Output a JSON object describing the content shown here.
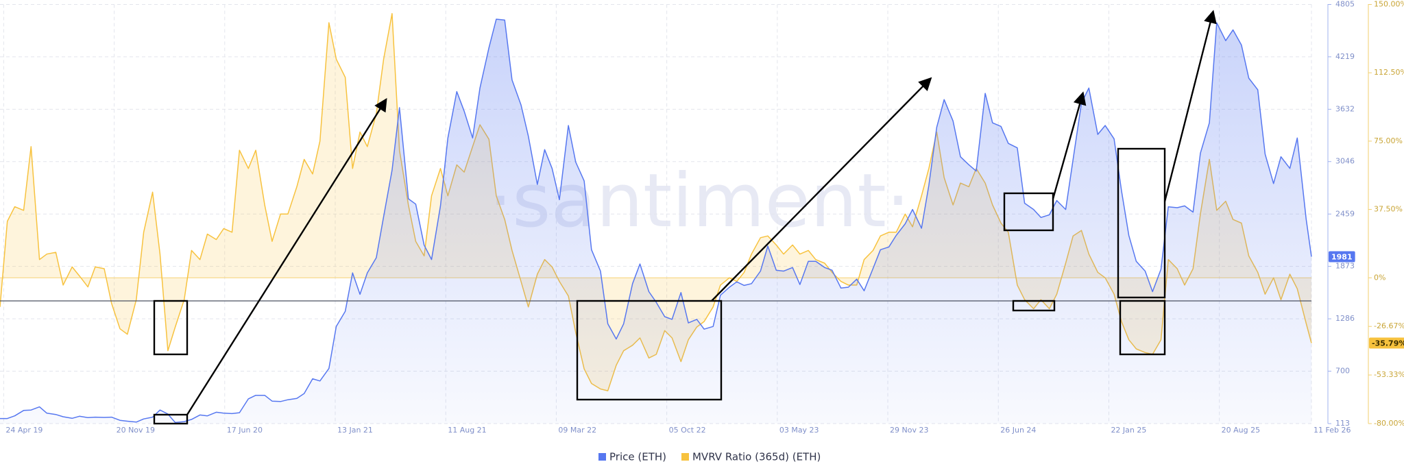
{
  "chart_data": {
    "type": "line",
    "watermark": "·santiment·",
    "grid": true,
    "x": [
      "2019-04-17",
      "2019-05-01",
      "2019-05-15",
      "2019-06-01",
      "2019-06-15",
      "2019-07-01",
      "2019-07-15",
      "2019-08-01",
      "2019-08-15",
      "2019-09-01",
      "2019-09-15",
      "2019-10-01",
      "2019-10-15",
      "2019-11-01",
      "2019-11-15",
      "2019-12-01",
      "2019-12-15",
      "2020-01-01",
      "2020-01-15",
      "2020-02-01",
      "2020-02-15",
      "2020-03-01",
      "2020-03-15",
      "2020-04-01",
      "2020-04-15",
      "2020-05-01",
      "2020-05-15",
      "2020-06-01",
      "2020-06-15",
      "2020-07-01",
      "2020-07-15",
      "2020-08-01",
      "2020-08-15",
      "2020-09-01",
      "2020-09-15",
      "2020-10-01",
      "2020-10-15",
      "2020-11-01",
      "2020-11-15",
      "2020-12-01",
      "2020-12-15",
      "2021-01-01",
      "2021-01-15",
      "2021-02-01",
      "2021-02-15",
      "2021-03-01",
      "2021-03-15",
      "2021-04-01",
      "2021-04-15",
      "2021-05-01",
      "2021-05-15",
      "2021-06-01",
      "2021-06-15",
      "2021-07-01",
      "2021-07-15",
      "2021-08-01",
      "2021-08-15",
      "2021-09-01",
      "2021-09-15",
      "2021-10-01",
      "2021-10-15",
      "2021-11-01",
      "2021-11-15",
      "2021-12-01",
      "2021-12-15",
      "2022-01-01",
      "2022-01-15",
      "2022-02-01",
      "2022-02-15",
      "2022-03-01",
      "2022-03-15",
      "2022-04-01",
      "2022-04-15",
      "2022-05-01",
      "2022-05-15",
      "2022-06-01",
      "2022-06-15",
      "2022-07-01",
      "2022-07-15",
      "2022-08-01",
      "2022-08-15",
      "2022-09-01",
      "2022-09-15",
      "2022-10-01",
      "2022-10-15",
      "2022-11-01",
      "2022-11-15",
      "2022-12-01",
      "2022-12-15",
      "2023-01-01",
      "2023-01-15",
      "2023-02-01",
      "2023-02-15",
      "2023-03-01",
      "2023-03-15",
      "2023-04-01",
      "2023-04-15",
      "2023-05-01",
      "2023-05-15",
      "2023-06-01",
      "2023-06-15",
      "2023-07-01",
      "2023-07-15",
      "2023-08-01",
      "2023-08-15",
      "2023-09-01",
      "2023-09-15",
      "2023-10-01",
      "2023-10-15",
      "2023-11-01",
      "2023-11-15",
      "2023-12-01",
      "2023-12-15",
      "2024-01-01",
      "2024-01-15",
      "2024-02-01",
      "2024-02-15",
      "2024-03-01",
      "2024-03-15",
      "2024-04-01",
      "2024-04-15",
      "2024-05-01",
      "2024-05-15",
      "2024-06-01",
      "2024-06-15",
      "2024-07-01",
      "2024-07-15",
      "2024-08-01",
      "2024-08-15",
      "2024-09-01",
      "2024-09-15",
      "2024-10-01",
      "2024-10-15",
      "2024-11-01",
      "2024-11-15",
      "2024-12-01",
      "2024-12-15",
      "2025-01-01",
      "2025-01-15",
      "2025-02-01",
      "2025-02-15",
      "2025-03-01",
      "2025-03-15",
      "2025-04-01",
      "2025-04-15",
      "2025-05-01",
      "2025-05-15",
      "2025-06-01",
      "2025-06-15",
      "2025-07-01",
      "2025-07-15",
      "2025-08-01",
      "2025-08-15",
      "2025-09-01",
      "2025-09-15",
      "2025-10-01",
      "2025-10-15",
      "2025-11-01",
      "2025-11-15",
      "2025-12-01",
      "2025-12-15",
      "2026-01-01",
      "2026-01-15",
      "2026-02-01",
      "2026-02-11"
    ],
    "xlim": [
      "2019-04-17",
      "2026-02-11"
    ],
    "xticks": [
      {
        "value": "2019-04-24",
        "label": "24 Apr 19"
      },
      {
        "value": "2019-11-20",
        "label": "20 Nov 19"
      },
      {
        "value": "2020-06-17",
        "label": "17 Jun 20"
      },
      {
        "value": "2021-01-13",
        "label": "13 Jan 21"
      },
      {
        "value": "2021-08-11",
        "label": "11 Aug 21"
      },
      {
        "value": "2022-03-09",
        "label": "09 Mar 22"
      },
      {
        "value": "2022-10-05",
        "label": "05 Oct 22"
      },
      {
        "value": "2023-05-03",
        "label": "03 May 23"
      },
      {
        "value": "2023-11-29",
        "label": "29 Nov 23"
      },
      {
        "value": "2024-06-26",
        "label": "26 Jun 24"
      },
      {
        "value": "2025-01-22",
        "label": "22 Jan 25"
      },
      {
        "value": "2025-08-20",
        "label": "20 Aug 25"
      },
      {
        "value": "2026-02-11",
        "label": "11 Feb 26"
      }
    ],
    "ylim": [
      113,
      4805
    ],
    "yticks": [
      113,
      700,
      1286,
      1873,
      2459,
      3046,
      3632,
      4219,
      4805
    ],
    "y2lim": [
      -80,
      150
    ],
    "y2ticks": [
      {
        "value": 150,
        "label": "150.00%"
      },
      {
        "value": 112.5,
        "label": "112.50%"
      },
      {
        "value": 75,
        "label": "75.00%"
      },
      {
        "value": 37.5,
        "label": "37.50%"
      },
      {
        "value": 0,
        "label": "0%"
      },
      {
        "value": -26.67,
        "label": "-26.67%"
      },
      {
        "value": -53.33,
        "label": "-53.33%"
      },
      {
        "value": -80,
        "label": "-80.00%"
      }
    ],
    "series": [
      {
        "name": "Price (ETH)",
        "color": "#5677f0",
        "axis": "y",
        "values": [
          170,
          170,
          200,
          260,
          265,
          300,
          230,
          215,
          190,
          172,
          195,
          180,
          185,
          182,
          185,
          150,
          140,
          130,
          165,
          185,
          265,
          220,
          125,
          135,
          160,
          210,
          200,
          240,
          230,
          225,
          235,
          390,
          430,
          430,
          365,
          360,
          380,
          395,
          450,
          615,
          590,
          730,
          1200,
          1370,
          1800,
          1560,
          1800,
          1970,
          2430,
          2950,
          3650,
          2630,
          2570,
          2110,
          1950,
          2550,
          3310,
          3830,
          3610,
          3310,
          3870,
          4320,
          4640,
          4630,
          3960,
          3680,
          3330,
          2790,
          3180,
          2970,
          2620,
          3450,
          3040,
          2830,
          2060,
          1820,
          1230,
          1060,
          1230,
          1680,
          1900,
          1590,
          1470,
          1310,
          1280,
          1580,
          1240,
          1280,
          1170,
          1200,
          1550,
          1640,
          1700,
          1660,
          1680,
          1820,
          2100,
          1830,
          1820,
          1860,
          1670,
          1930,
          1930,
          1860,
          1830,
          1630,
          1640,
          1730,
          1600,
          1850,
          2060,
          2090,
          2220,
          2350,
          2510,
          2300,
          2780,
          3430,
          3740,
          3500,
          3100,
          3010,
          2940,
          3810,
          3480,
          3440,
          3250,
          3200,
          2580,
          2510,
          2420,
          2450,
          2610,
          2510,
          3070,
          3700,
          3870,
          3350,
          3450,
          3300,
          2720,
          2220,
          1930,
          1820,
          1590,
          1840,
          2540,
          2530,
          2550,
          2480,
          3140,
          3480,
          4600,
          4400,
          4520,
          4350,
          3980,
          3850,
          3130,
          2800,
          3100,
          2970,
          3310,
          2400,
          1981
        ]
      },
      {
        "name": "MVRV Ratio (365d) (ETH)",
        "color": "#f7c23e",
        "axis": "y2",
        "last_value_label": "-35.79%",
        "values": [
          -16,
          31,
          39,
          37,
          72,
          10,
          13,
          14,
          -4,
          6,
          1,
          -5,
          6,
          5,
          -14,
          -28,
          -31,
          -12,
          25,
          47,
          13,
          -40,
          -27,
          -12,
          15,
          10,
          24,
          21,
          27,
          25,
          70,
          60,
          70,
          40,
          20,
          35,
          35,
          50,
          65,
          57,
          75,
          140,
          120,
          110,
          60,
          80,
          72,
          90,
          120,
          145,
          70,
          40,
          20,
          12,
          45,
          60,
          45,
          62,
          58,
          72,
          84,
          76,
          45,
          32,
          15,
          -2,
          -16,
          2,
          10,
          6,
          -2,
          -10,
          -30,
          -50,
          -58,
          -61,
          -62,
          -48,
          -40,
          -37,
          -33,
          -44,
          -42,
          -29,
          -33,
          -46,
          -34,
          -27,
          -24,
          -16,
          -4,
          0,
          -2,
          3,
          13,
          22,
          23,
          18,
          13,
          18,
          13,
          15,
          10,
          8,
          3,
          -2,
          -4,
          -4,
          10,
          15,
          23,
          25,
          25,
          35,
          28,
          45,
          60,
          80,
          55,
          40,
          52,
          50,
          60,
          52,
          40,
          30,
          25,
          -4,
          -12,
          -17,
          -12,
          -17,
          -9,
          8,
          23,
          26,
          13,
          3,
          0,
          -9,
          -24,
          -34,
          -39,
          -41,
          -42,
          -34,
          10,
          5,
          -4,
          5,
          35,
          65,
          37,
          42,
          32,
          30,
          12,
          3,
          -9,
          0,
          -12,
          2,
          -6,
          -25,
          -35.79
        ]
      }
    ]
  }
}
